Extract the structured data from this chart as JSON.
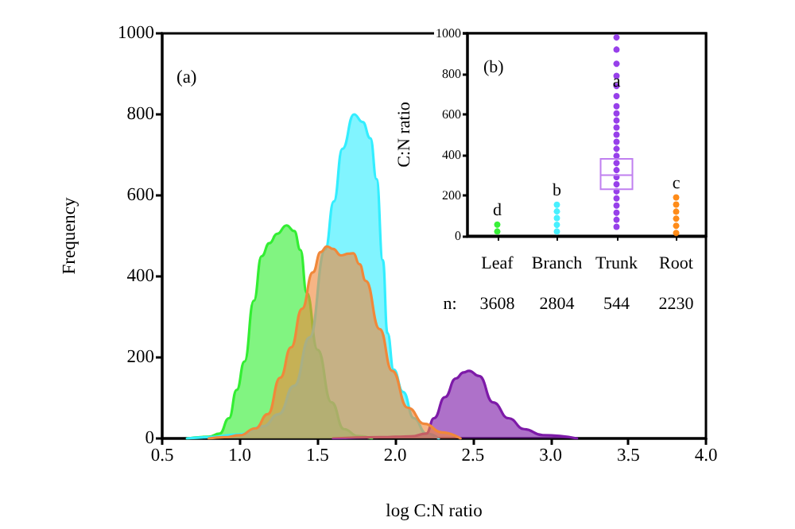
{
  "chart_data": [
    {
      "type": "area",
      "xlabel": "log C:N ratio",
      "ylabel": "Frequency",
      "annotations": [
        "(a)"
      ],
      "marker": "none",
      "xlim": [
        0.5,
        4.0
      ],
      "xticks": [
        0.5,
        {
          "value": 1,
          "label": "1.0"
        },
        1.5,
        {
          "value": 2,
          "label": "2.0"
        },
        2.5,
        {
          "value": 3,
          "label": "3.0"
        },
        3.5,
        {
          "value": 4,
          "label": "4.0"
        }
      ],
      "ylim": [
        0,
        1000
      ],
      "yticks": [
        0,
        200,
        400,
        600,
        800,
        1000
      ],
      "series": [
        {
          "color": "#33ee33",
          "x": [
            0.66,
            0.8,
            0.87,
            0.93,
            0.98,
            1.03,
            1.09,
            1.14,
            1.19,
            1.24,
            1.3,
            1.35,
            1.39,
            1.43,
            1.5,
            1.59,
            1.67,
            1.76,
            1.85
          ],
          "values": [
            0,
            4,
            12,
            50,
            120,
            190,
            340,
            450,
            482,
            505,
            526,
            512,
            465,
            360,
            219,
            89,
            23,
            6,
            0
          ]
        },
        {
          "color": "#33eeff",
          "x": [
            0.66,
            0.8,
            1.0,
            1.15,
            1.25,
            1.35,
            1.45,
            1.55,
            1.605,
            1.66,
            1.735,
            1.79,
            1.84,
            1.88,
            1.92,
            1.95,
            1.99,
            2.05,
            2.12,
            2.2,
            2.28
          ],
          "values": [
            0,
            3,
            10,
            30,
            60,
            130,
            250,
            467,
            585,
            715,
            800,
            781,
            741,
            640,
            440,
            260,
            170,
            115,
            50,
            12,
            0
          ]
        },
        {
          "color": "#7d1aa8",
          "x": [
            1.6,
            1.9,
            2.1,
            2.2,
            2.25,
            2.32,
            2.39,
            2.44,
            2.475,
            2.54,
            2.63,
            2.73,
            2.83,
            2.95,
            3.17
          ],
          "values": [
            0,
            3,
            5,
            12,
            50,
            102,
            148,
            163,
            167,
            154,
            89,
            50,
            23,
            8,
            0
          ]
        },
        {
          "color": "#f0883a",
          "x": [
            0.8,
            0.9,
            1.0,
            1.1,
            1.18,
            1.26,
            1.33,
            1.4,
            1.47,
            1.52,
            1.56,
            1.6,
            1.65,
            1.7,
            1.73,
            1.77,
            1.81,
            1.9,
            1.98,
            2.08,
            2.19,
            2.3,
            2.42
          ],
          "values": [
            0,
            3,
            8,
            25,
            60,
            150,
            225,
            320,
            410,
            460,
            474,
            468,
            452,
            456,
            457,
            430,
            389,
            270,
            167,
            76,
            36,
            15,
            0
          ]
        }
      ]
    },
    {
      "type": "box",
      "ylabel": "C:N ratio",
      "categories": [
        "Leaf",
        "Branch",
        "Trunk",
        "Root"
      ],
      "marker": "circle",
      "ylim": [
        0,
        1000
      ],
      "yticks": [
        0,
        200,
        400,
        600,
        800,
        1000
      ],
      "annotations": [
        "(b)",
        "n:",
        "3608",
        "2804",
        "544",
        "2230",
        {
          "text": "d",
          "x": "Leaf",
          "y": 56
        },
        {
          "text": "b",
          "x": "Branch",
          "y": 154
        },
        {
          "text": "a",
          "x": "Trunk",
          "y": 690
        },
        {
          "text": "c",
          "x": "Root",
          "y": 190
        }
      ],
      "series": [
        {
          "type": "scatter",
          "color": "#22ee22",
          "x": [
            "Leaf",
            "Leaf"
          ],
          "values": [
            22,
            56
          ]
        },
        {
          "type": "scatter",
          "color": "#33eeff",
          "x": [
            "Branch",
            "Branch",
            "Branch",
            "Branch",
            "Branch"
          ],
          "values": [
            22,
            55,
            88,
            121,
            154
          ]
        },
        {
          "type": "scatter",
          "color": "#8c2be8",
          "x": [
            "Trunk",
            "Trunk",
            "Trunk",
            "Trunk",
            "Trunk",
            "Trunk",
            "Trunk",
            "Trunk",
            "Trunk",
            "Trunk",
            "Trunk",
            "Trunk",
            "Trunk",
            "Trunk",
            "Trunk",
            "Trunk",
            "Trunk",
            "Trunk",
            "Trunk",
            "Trunk",
            "Trunk",
            "Trunk",
            "Trunk",
            "Trunk"
          ],
          "values": [
            45,
            80,
            115,
            150,
            185,
            220,
            255,
            290,
            325,
            360,
            395,
            430,
            465,
            500,
            535,
            570,
            605,
            640,
            690,
            740,
            790,
            850,
            920,
            980
          ]
        },
        {
          "type": "scatter",
          "color": "#ff8000",
          "x": [
            "Root",
            "Root",
            "Root",
            "Root",
            "Root",
            "Root"
          ],
          "values": [
            15,
            50,
            85,
            120,
            155,
            190
          ]
        },
        {
          "type": "box",
          "color": "#c080f0",
          "boxes": [
            null,
            null,
            {
              "low": 230,
              "q1": 230,
              "median": 300,
              "q3": 380,
              "high": 380
            },
            null
          ]
        }
      ]
    }
  ]
}
